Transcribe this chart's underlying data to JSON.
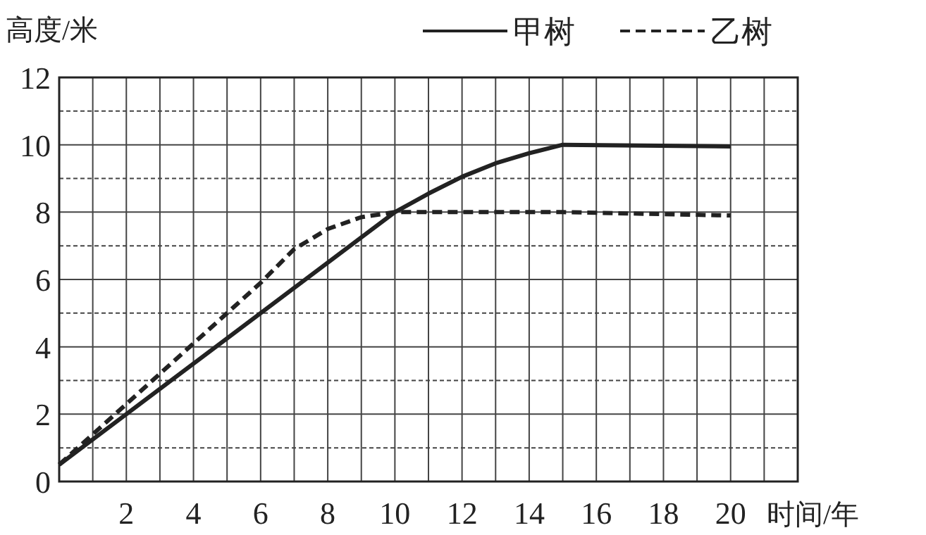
{
  "chart_data": {
    "type": "line",
    "xlabel": "时间/年",
    "ylabel": "高度/米",
    "xlim": [
      0,
      22
    ],
    "ylim": [
      0,
      12
    ],
    "xticks": [
      {
        "value": 1,
        "label": null
      },
      2,
      {
        "value": 3,
        "label": null
      },
      4,
      {
        "value": 5,
        "label": null
      },
      6,
      {
        "value": 7,
        "label": null
      },
      8,
      {
        "value": 9,
        "label": null
      },
      10,
      {
        "value": 11,
        "label": null
      },
      12,
      {
        "value": 13,
        "label": null
      },
      14,
      {
        "value": 15,
        "label": null
      },
      16,
      {
        "value": 17,
        "label": null
      },
      18,
      {
        "value": 19,
        "label": null
      },
      20,
      {
        "value": 21,
        "label": null
      }
    ],
    "yticks": [
      0,
      {
        "value": 1,
        "label": null
      },
      2,
      {
        "value": 3,
        "label": null
      },
      4,
      {
        "value": 5,
        "label": null
      },
      6,
      {
        "value": 7,
        "label": null
      },
      8,
      {
        "value": 9,
        "label": null
      },
      10,
      {
        "value": 11,
        "label": null
      },
      12
    ],
    "grid": true,
    "legend": "top right",
    "marker": "none",
    "series": [
      {
        "name": "甲树",
        "color": "#222222",
        "line_style": "solid",
        "x": [
          0,
          10,
          11,
          12,
          13,
          14,
          15,
          20
        ],
        "values": [
          0.5,
          8,
          8.55,
          9.05,
          9.45,
          9.75,
          10,
          9.95
        ]
      },
      {
        "name": "乙树",
        "color": "#222222",
        "line_style": "dashed",
        "x": [
          0,
          1,
          2,
          4,
          6,
          7,
          8,
          9,
          10,
          15,
          20
        ],
        "values": [
          0.5,
          1.4,
          2.3,
          4.1,
          5.9,
          6.9,
          7.5,
          7.85,
          8,
          8,
          7.9
        ]
      }
    ]
  }
}
